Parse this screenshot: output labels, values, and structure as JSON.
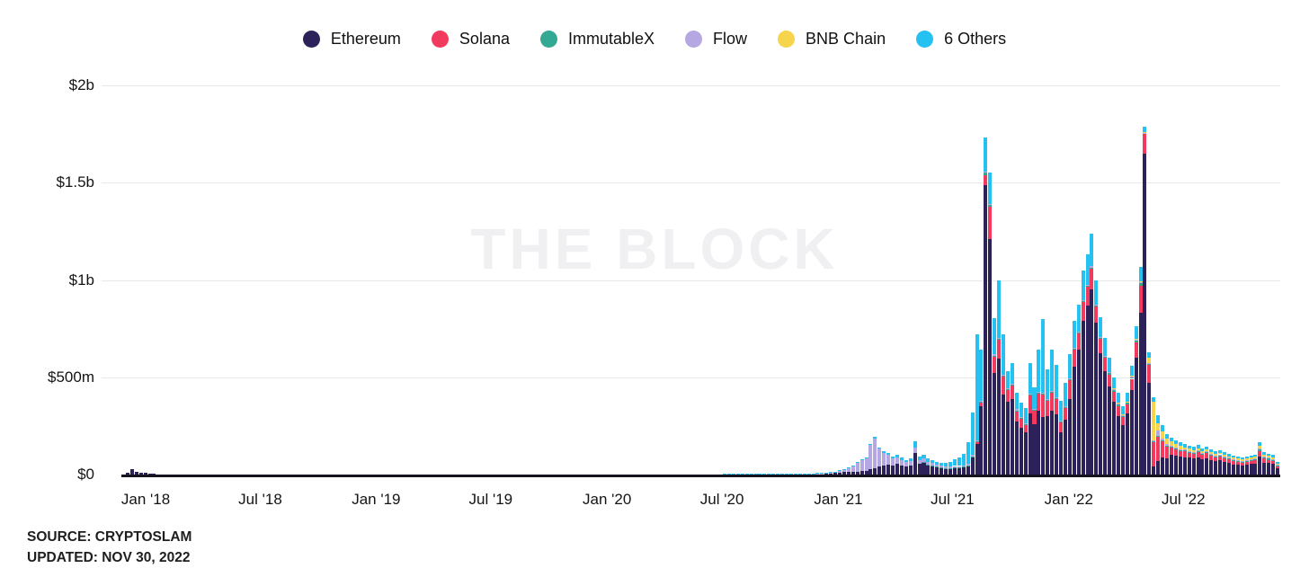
{
  "legend": {
    "items": [
      {
        "label": "Ethereum",
        "color": "#2c2259"
      },
      {
        "label": "Solana",
        "color": "#f23a5e"
      },
      {
        "label": "ImmutableX",
        "color": "#33a893"
      },
      {
        "label": "Flow",
        "color": "#b5a7e2"
      },
      {
        "label": "BNB Chain",
        "color": "#f6d44c"
      },
      {
        "label": "6 Others",
        "color": "#25c1f1"
      }
    ]
  },
  "watermark": "THE BLOCK",
  "source": {
    "line1": "SOURCE: CRYPTOSLAM",
    "line2": "UPDATED: NOV 30, 2022"
  },
  "chart_data": {
    "type": "bar",
    "stacked": true,
    "frequency": "weekly",
    "unit": "USD millions per week",
    "first_week": "2017-11-27",
    "last_week": "2022-11-28",
    "ylim_musd": [
      0,
      2000
    ],
    "grid": "horizontal",
    "legend_position": "top-center",
    "series_names": [
      "Ethereum",
      "Solana",
      "ImmutableX",
      "Flow",
      "BNB Chain",
      "6 Others"
    ],
    "series_colors": [
      "#2c2259",
      "#f23a5e",
      "#33a893",
      "#b5a7e2",
      "#f6d44c",
      "#25c1f1"
    ],
    "y_ticks": [
      {
        "label": "$2b",
        "musd": 2000
      },
      {
        "label": "$1.5b",
        "musd": 1500
      },
      {
        "label": "$1b",
        "musd": 1000
      },
      {
        "label": "$500m",
        "musd": 500
      },
      {
        "label": "$0",
        "musd": 0
      }
    ],
    "x_ticks": [
      {
        "label": "Jan '18",
        "week": 5
      },
      {
        "label": "Jul '18",
        "week": 30.9
      },
      {
        "label": "Jan '19",
        "week": 57.1
      },
      {
        "label": "Jul '19",
        "week": 83
      },
      {
        "label": "Jan '20",
        "week": 109.3
      },
      {
        "label": "Jul '20",
        "week": 135.3
      },
      {
        "label": "Jan '21",
        "week": 161.6
      },
      {
        "label": "Jul '21",
        "week": 187.4
      },
      {
        "label": "Jan '22",
        "week": 213.7
      },
      {
        "label": "Jul '22",
        "week": 239.6
      }
    ],
    "weekly_values_musd": [
      [
        2,
        0,
        0,
        0,
        0,
        0
      ],
      [
        10,
        0,
        0,
        0,
        0,
        0
      ],
      [
        27,
        0,
        0,
        0,
        0,
        0
      ],
      [
        16,
        0,
        0,
        0,
        0,
        0
      ],
      [
        9,
        0,
        0,
        0,
        0,
        0
      ],
      [
        7,
        0,
        0,
        0,
        0,
        0
      ],
      [
        5,
        0,
        0,
        0,
        0,
        0
      ],
      [
        4,
        0,
        0,
        0,
        0,
        0
      ],
      {
        "r": 49,
        "v": [
          2,
          0,
          0,
          0,
          0,
          0
        ]
      },
      {
        "r": 52,
        "v": [
          1,
          0,
          0,
          0,
          0,
          0
        ]
      },
      {
        "r": 27,
        "v": [
          1,
          0,
          0,
          0,
          0,
          0
        ]
      },
      {
        "r": 12,
        "v": [
          2,
          0,
          0,
          0,
          0,
          1
        ]
      },
      {
        "r": 5,
        "v": [
          3,
          0,
          0,
          0,
          0,
          1
        ]
      },
      {
        "r": 4,
        "v": [
          4,
          0,
          0,
          1,
          0,
          1
        ]
      },
      [
        5,
        0,
        0,
        1,
        0,
        1
      ],
      [
        5,
        0,
        0,
        2,
        0,
        1
      ],
      [
        6,
        0,
        0,
        3,
        0,
        1
      ],
      [
        7,
        0,
        0,
        4,
        0,
        2
      ],
      [
        8,
        0,
        0,
        6,
        0,
        2
      ],
      [
        10,
        0,
        0,
        9,
        0,
        2
      ],
      [
        12,
        0,
        0,
        13,
        0,
        2
      ],
      [
        14,
        0,
        0,
        18,
        0,
        3
      ],
      [
        15,
        0,
        0,
        26,
        0,
        3
      ],
      [
        16,
        0,
        0,
        46,
        0,
        4
      ],
      [
        18,
        0,
        0,
        56,
        0,
        4
      ],
      [
        20,
        0,
        0,
        63,
        0,
        5
      ],
      [
        30,
        0,
        0,
        122,
        0,
        7
      ],
      [
        34,
        0,
        0,
        152,
        0,
        8
      ],
      [
        40,
        0,
        0,
        92,
        0,
        8
      ],
      [
        46,
        0,
        0,
        66,
        0,
        9
      ],
      [
        50,
        0,
        0,
        50,
        0,
        10
      ],
      [
        44,
        0,
        0,
        40,
        0,
        10
      ],
      [
        56,
        0,
        0,
        34,
        0,
        11
      ],
      [
        46,
        0,
        0,
        30,
        0,
        10
      ],
      [
        40,
        0,
        0,
        26,
        0,
        10
      ],
      [
        46,
        0,
        0,
        25,
        0,
        12
      ],
      [
        112,
        0,
        0,
        28,
        0,
        30
      ],
      [
        56,
        0,
        0,
        20,
        0,
        15
      ],
      [
        62,
        0,
        2,
        18,
        0,
        18
      ],
      [
        50,
        0,
        2,
        15,
        0,
        15
      ],
      [
        46,
        0,
        2,
        12,
        0,
        15
      ],
      [
        40,
        0,
        2,
        10,
        0,
        13
      ],
      [
        34,
        0,
        2,
        9,
        0,
        15
      ],
      [
        30,
        0,
        2,
        8,
        0,
        19
      ],
      [
        30,
        0,
        2,
        8,
        0,
        24
      ],
      [
        34,
        0,
        2,
        8,
        0,
        34
      ],
      [
        34,
        0,
        2,
        8,
        0,
        44
      ],
      [
        38,
        0,
        2,
        8,
        0,
        60
      ],
      [
        46,
        0,
        2,
        7,
        0,
        110
      ],
      [
        88,
        4,
        2,
        7,
        0,
        220
      ],
      [
        158,
        8,
        3,
        6,
        0,
        545
      ],
      [
        352,
        18,
        4,
        6,
        0,
        262
      ],
      [
        1488,
        50,
        12,
        6,
        0,
        177
      ],
      [
        1208,
        170,
        8,
        6,
        0,
        162
      ],
      [
        523,
        84,
        5,
        5,
        0,
        185
      ],
      [
        596,
        96,
        5,
        5,
        0,
        298
      ],
      [
        412,
        90,
        5,
        5,
        0,
        208
      ],
      [
        374,
        62,
        4,
        5,
        0,
        88
      ],
      [
        390,
        66,
        4,
        5,
        0,
        108
      ],
      [
        272,
        54,
        4,
        5,
        0,
        85
      ],
      [
        238,
        48,
        4,
        4,
        0,
        76
      ],
      [
        215,
        42,
        4,
        4,
        0,
        75
      ],
      [
        315,
        92,
        4,
        4,
        0,
        160
      ],
      [
        260,
        70,
        4,
        4,
        0,
        112
      ],
      [
        330,
        85,
        5,
        4,
        0,
        216
      ],
      [
        295,
        115,
        5,
        4,
        0,
        381
      ],
      [
        300,
        80,
        5,
        4,
        0,
        151
      ],
      [
        330,
        90,
        6,
        4,
        0,
        210
      ],
      [
        310,
        78,
        6,
        4,
        0,
        166
      ],
      [
        215,
        55,
        5,
        4,
        0,
        101
      ],
      [
        280,
        62,
        5,
        4,
        0,
        119
      ],
      [
        390,
        95,
        6,
        4,
        0,
        125
      ],
      [
        555,
        85,
        6,
        4,
        0,
        140
      ],
      [
        640,
        85,
        6,
        4,
        0,
        139
      ],
      [
        790,
        95,
        6,
        4,
        0,
        155
      ],
      [
        870,
        95,
        7,
        4,
        0,
        154
      ],
      [
        950,
        106,
        8,
        6,
        0,
        170
      ],
      [
        780,
        82,
        6,
        4,
        0,
        128
      ],
      [
        622,
        74,
        6,
        4,
        0,
        104
      ],
      [
        532,
        68,
        6,
        4,
        0,
        90
      ],
      [
        452,
        60,
        10,
        4,
        0,
        74
      ],
      [
        372,
        54,
        10,
        4,
        4,
        56
      ],
      [
        302,
        50,
        10,
        4,
        4,
        50
      ],
      [
        252,
        44,
        8,
        3,
        3,
        40
      ],
      [
        312,
        50,
        8,
        3,
        3,
        44
      ],
      [
        432,
        60,
        8,
        3,
        3,
        54
      ],
      [
        600,
        80,
        10,
        3,
        3,
        64
      ],
      [
        830,
        140,
        15,
        4,
        4,
        72
      ],
      [
        1650,
        100,
        4,
        2,
        2,
        28
      ],
      [
        470,
        95,
        6,
        3,
        25,
        27
      ],
      [
        42,
        128,
        3,
        2,
        200,
        20
      ],
      [
        70,
        125,
        5,
        25,
        40,
        40
      ],
      [
        90,
        80,
        5,
        8,
        40,
        30
      ],
      [
        85,
        60,
        5,
        5,
        28,
        27
      ],
      [
        100,
        38,
        5,
        4,
        22,
        22
      ],
      [
        95,
        34,
        6,
        3,
        18,
        19
      ],
      [
        92,
        30,
        6,
        3,
        15,
        19
      ],
      [
        90,
        28,
        6,
        4,
        12,
        16
      ],
      [
        86,
        26,
        6,
        4,
        10,
        16
      ],
      [
        82,
        25,
        6,
        4,
        10,
        16
      ],
      [
        88,
        27,
        6,
        4,
        10,
        17
      ],
      [
        78,
        24,
        6,
        4,
        9,
        15
      ],
      [
        84,
        26,
        6,
        4,
        9,
        16
      ],
      [
        74,
        23,
        6,
        4,
        8,
        15
      ],
      [
        68,
        21,
        6,
        4,
        8,
        14
      ],
      [
        72,
        22,
        6,
        4,
        8,
        15
      ],
      [
        64,
        20,
        6,
        4,
        8,
        14
      ],
      [
        58,
        19,
        6,
        4,
        7,
        13
      ],
      [
        52,
        17,
        6,
        4,
        7,
        12
      ],
      [
        50,
        16,
        5,
        4,
        7,
        11
      ],
      [
        47,
        15,
        5,
        4,
        7,
        11
      ],
      [
        50,
        16,
        5,
        4,
        7,
        11
      ],
      [
        54,
        17,
        5,
        4,
        7,
        12
      ],
      [
        57,
        18,
        5,
        4,
        8,
        12
      ],
      [
        94,
        28,
        7,
        5,
        14,
        20
      ],
      [
        62,
        20,
        6,
        4,
        10,
        14
      ],
      [
        58,
        18,
        6,
        4,
        9,
        13
      ],
      [
        54,
        17,
        5,
        4,
        8,
        12
      ],
      [
        33,
        11,
        4,
        3,
        5,
        8
      ]
    ]
  }
}
